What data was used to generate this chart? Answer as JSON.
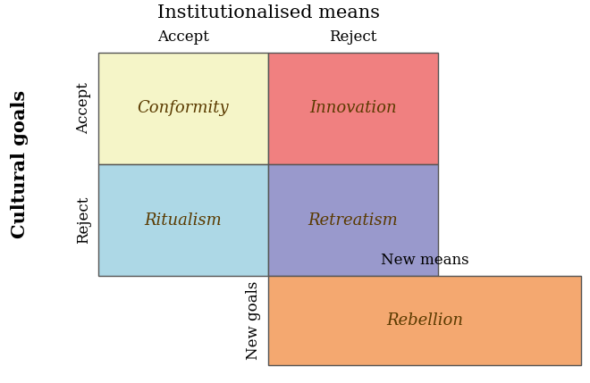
{
  "title": "Institutionalised means",
  "col_labels": [
    "Accept",
    "Reject"
  ],
  "row_labels": [
    "Accept",
    "Reject"
  ],
  "outer_ylabel": "Cultural goals",
  "cells": [
    {
      "label": "Conformity",
      "color": "#f5f5c8"
    },
    {
      "label": "Innovation",
      "color": "#f08080"
    },
    {
      "label": "Ritualism",
      "color": "#add8e6"
    },
    {
      "label": "Retreatism",
      "color": "#9999cc"
    }
  ],
  "rebellion": {
    "label": "Rebellion",
    "color": "#f4a870",
    "new_means_label": "New means",
    "new_goals_label": "New goals"
  },
  "cell_label_color": "#5a3a00",
  "grid_color": "#555555",
  "background_color": "#ffffff",
  "title_fontsize": 15,
  "col_label_fontsize": 12,
  "row_label_fontsize": 12,
  "cell_fontsize": 13,
  "outer_label_fontsize": 15,
  "new_label_fontsize": 12
}
